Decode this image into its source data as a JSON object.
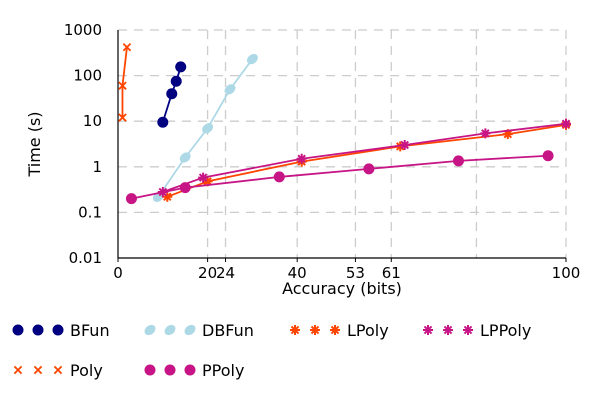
{
  "chart_data": {
    "type": "scatter",
    "title": "",
    "xlabel": "Accuracy (bits)",
    "ylabel": "Time (s)",
    "x_scale": "linear",
    "y_scale": "log",
    "xlim": [
      0,
      100
    ],
    "ylim": [
      0.01,
      1000
    ],
    "x_ticks": [
      0,
      20,
      24,
      40,
      53,
      61,
      100
    ],
    "x_tick_labels": [
      "0",
      "20",
      "24",
      "40",
      "53",
      "61",
      "100"
    ],
    "x_grid": [
      20,
      24,
      40,
      53,
      61,
      80,
      100
    ],
    "y_ticks": [
      0.01,
      0.1,
      1,
      10,
      100,
      1000
    ],
    "y_tick_labels": [
      "0.01",
      "0.1",
      "1",
      "10",
      "100",
      "1000"
    ],
    "grid": true,
    "legend_position": "bottom",
    "series": [
      {
        "name": "BFun",
        "color": "#000080",
        "marker": "circle",
        "x": [
          10,
          12,
          13,
          14
        ],
        "y": [
          9.5,
          40,
          75,
          155
        ]
      },
      {
        "name": "DBFun",
        "color": "#add8e6",
        "marker": "ellipse",
        "x": [
          9,
          15,
          20,
          25,
          30
        ],
        "y": [
          0.22,
          1.6,
          7,
          50,
          230
        ]
      },
      {
        "name": "LPoly",
        "color": "#ff4500",
        "marker": "asterisk",
        "x": [
          11,
          20,
          41,
          63,
          87,
          100
        ],
        "y": [
          0.22,
          0.48,
          1.3,
          2.8,
          5.2,
          8.3
        ]
      },
      {
        "name": "LPPoly",
        "color": "#c71585",
        "marker": "asterisk",
        "x": [
          10,
          19,
          41,
          64,
          82,
          100
        ],
        "y": [
          0.28,
          0.58,
          1.5,
          3.0,
          5.4,
          8.8
        ]
      },
      {
        "name": "Poly",
        "color": "#ff4500",
        "marker": "cross",
        "x": [
          1,
          1,
          2
        ],
        "y": [
          12,
          60,
          420
        ]
      },
      {
        "name": "PPoly",
        "color": "#c71585",
        "marker": "circle",
        "x": [
          3,
          15,
          36,
          56,
          76,
          96
        ],
        "y": [
          0.2,
          0.35,
          0.6,
          0.9,
          1.35,
          1.75
        ]
      }
    ]
  }
}
